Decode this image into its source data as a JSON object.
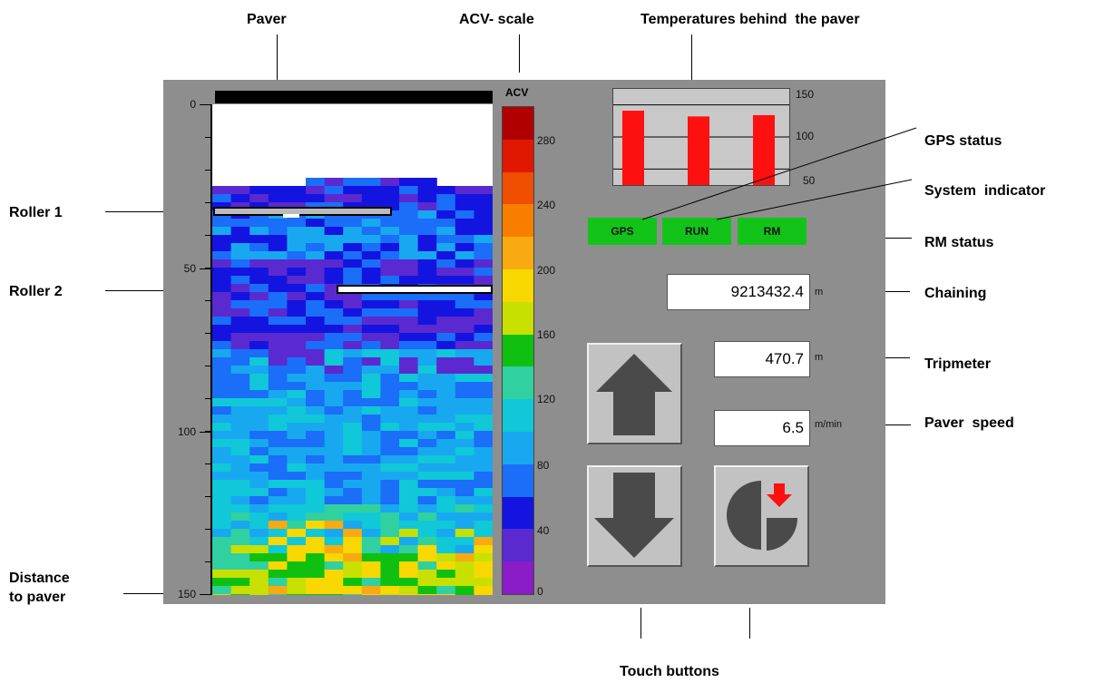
{
  "callouts": {
    "paver": "Paver",
    "acv_scale": "ACV- scale",
    "temperatures": "Temperatures behind  the paver",
    "roller1": "Roller 1",
    "roller2": "Roller 2",
    "gps_status": "GPS status",
    "system_indicator": "System  indicator",
    "rm_status": "RM status",
    "chaining": "Chaining",
    "tripmeter": "Tripmeter",
    "paver_speed": "Paver  speed",
    "distance_line1": "Distance",
    "distance_line2": "to paver",
    "touch_buttons": "Touch buttons"
  },
  "distance_axis": {
    "ticks": [
      "0",
      "50",
      "100",
      "150"
    ],
    "min": 0,
    "max": 150
  },
  "acv_scale": {
    "title": "ACV",
    "ticks": [
      "280",
      "240",
      "200",
      "160",
      "120",
      "80",
      "40",
      "0"
    ],
    "colors": [
      "#b00000",
      "#e01800",
      "#f04e00",
      "#f87e00",
      "#f8aa10",
      "#f8d800",
      "#c8e000",
      "#10c010",
      "#30d0a0",
      "#10c8d8",
      "#18a8f0",
      "#1a6ef8",
      "#1414e0",
      "#5a2ad0",
      "#8a1cc8"
    ]
  },
  "temperatures": {
    "ticks": [
      "150",
      "100",
      "50"
    ],
    "ymin": 25,
    "ymax": 175,
    "gridlines": [
      150,
      100,
      50
    ],
    "values": [
      141,
      132,
      134
    ],
    "bar_color": "#ff1010"
  },
  "status": {
    "gps": "GPS",
    "run": "RUN",
    "rm": "RM",
    "color": "#12c41a"
  },
  "readouts": {
    "chaining": "9213432.4",
    "chaining_unit": "m",
    "tripmeter": "470.7",
    "tripmeter_unit": "m",
    "speed": "6.5",
    "speed_unit": "m/min"
  }
}
